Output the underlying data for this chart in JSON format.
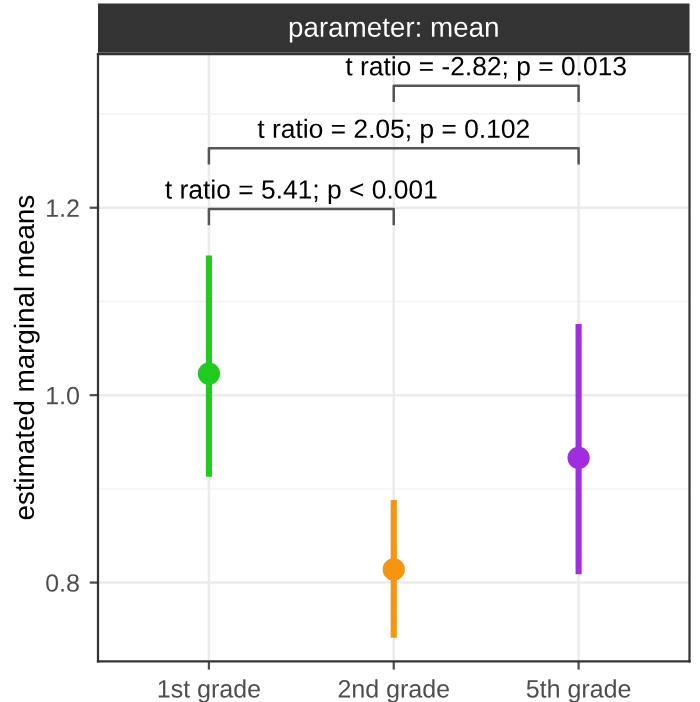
{
  "chart_data": {
    "type": "scatter",
    "title": "parameter: mean",
    "ylabel": "estimated marginal means",
    "categories": [
      "1st grade",
      "2nd grade",
      "5th grade"
    ],
    "values": [
      1.023,
      0.814,
      0.933
    ],
    "colors": [
      "#1fcb1f",
      "#f7950e",
      "#a02ee0"
    ],
    "errors": [
      [
        0.913,
        1.149
      ],
      [
        0.741,
        0.888
      ],
      [
        0.809,
        1.076
      ]
    ],
    "ylim": [
      0.716,
      1.364
    ],
    "yticks": [
      {
        "value": 0.8,
        "label": "0.8"
      },
      {
        "value": 1.0,
        "label": "1.0"
      },
      {
        "value": 1.2,
        "label": "1.2"
      }
    ],
    "grid": true,
    "marker": "circle",
    "annotations": [
      "t ratio = 5.41; p < 0.001",
      "t ratio = 2.05; p = 0.102",
      "t ratio = -2.82; p = 0.013"
    ]
  }
}
